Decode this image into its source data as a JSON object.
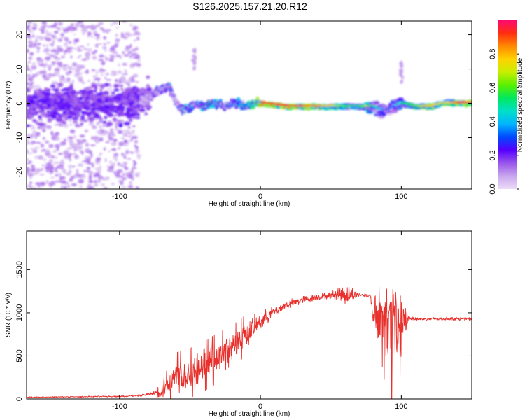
{
  "title": "S126.2025.157.21.20.R12",
  "chart_data": [
    {
      "type": "heatmap",
      "xlabel": "Height of straight line (km)",
      "ylabel": "Frequency (Hz)",
      "xlim": [
        -166,
        150
      ],
      "ylim": [
        -25,
        24
      ],
      "x_ticks": [
        -100,
        0,
        100
      ],
      "y_ticks": [
        -20,
        -10,
        0,
        10,
        20
      ],
      "colorbar": {
        "label": "Normalized spectral amplitude",
        "range": [
          0.0,
          1.0
        ],
        "ticks": [
          0.0,
          0.2,
          0.4,
          0.6,
          0.8
        ],
        "colors": [
          "#ecdcf8",
          "#c9a6ee",
          "#9a55ea",
          "#5500ff",
          "#0048ff",
          "#00b4ff",
          "#00e0c8",
          "#00e860",
          "#58f000",
          "#c8ee00",
          "#ffd200",
          "#ff8a00",
          "#ff2e10",
          "#ff0a70"
        ]
      },
      "ridge": {
        "x": [
          -166,
          -140,
          -120,
          -100,
          -90,
          -80,
          -75,
          -70,
          -65,
          -62,
          -58,
          -54,
          -50,
          -45,
          -40,
          -35,
          -30,
          -25,
          -20,
          -15,
          -10,
          -5,
          0,
          20,
          40,
          60,
          70,
          75,
          80,
          85,
          90,
          95,
          100,
          110,
          120,
          130,
          140,
          150
        ],
        "frequency": [
          0,
          0,
          0,
          0,
          0,
          1,
          3,
          4,
          5,
          2,
          -1,
          -2,
          -1,
          0,
          -1,
          0,
          0,
          -1,
          0,
          0,
          -1,
          0,
          0,
          -1,
          -1,
          -1,
          -1,
          -1,
          -1,
          -2,
          -2,
          -1,
          0,
          -1,
          -1,
          0,
          0,
          0
        ],
        "amplitude": [
          0.15,
          0.15,
          0.15,
          0.15,
          0.12,
          0.2,
          0.3,
          0.35,
          0.4,
          0.3,
          0.35,
          0.45,
          0.5,
          0.4,
          0.5,
          0.55,
          0.5,
          0.45,
          0.45,
          0.5,
          0.55,
          0.7,
          0.9,
          0.95,
          0.85,
          0.6,
          0.5,
          0.7,
          0.5,
          0.4,
          0.3,
          0.35,
          0.5,
          0.6,
          0.8,
          0.7,
          0.9,
          0.95
        ]
      },
      "spur": {
        "x": 100,
        "frequency": [
          6,
          12
        ]
      }
    },
    {
      "type": "line",
      "xlabel": "Height of straight line (km)",
      "ylabel": "SNR (10 * v/v)",
      "xlim": [
        -166,
        150
      ],
      "ylim": [
        0,
        1950
      ],
      "x_ticks": [
        -100,
        0,
        100
      ],
      "y_ticks": [
        0,
        500,
        1000,
        1500
      ],
      "series": [
        {
          "color": "#e8302c",
          "envelope": {
            "x": [
              -166,
              -130,
              -100,
              -85,
              -75,
              -70,
              -68,
              -60,
              -50,
              -40,
              -30,
              -20,
              -10,
              0,
              10,
              20,
              30,
              40,
              50,
              58,
              62,
              70,
              78,
              80,
              85,
              88,
              90,
              95,
              98,
              100,
              102,
              105,
              110,
              120,
              130,
              150
            ],
            "y": [
              20,
              25,
              30,
              40,
              70,
              100,
              180,
              250,
              300,
              380,
              480,
              600,
              750,
              900,
              1020,
              1100,
              1150,
              1180,
              1200,
              1220,
              1210,
              1210,
              1200,
              960,
              940,
              900,
              900,
              850,
              800,
              780,
              850,
              940,
              930,
              930,
              930,
              930
            ],
            "spread": [
              8,
              8,
              10,
              15,
              25,
              150,
              220,
              250,
              250,
              250,
              250,
              220,
              200,
              120,
              80,
              70,
              60,
              50,
              50,
              150,
              150,
              30,
              30,
              150,
              350,
              600,
              800,
              800,
              850,
              700,
              400,
              40,
              30,
              25,
              25,
              25
            ]
          }
        }
      ]
    }
  ]
}
